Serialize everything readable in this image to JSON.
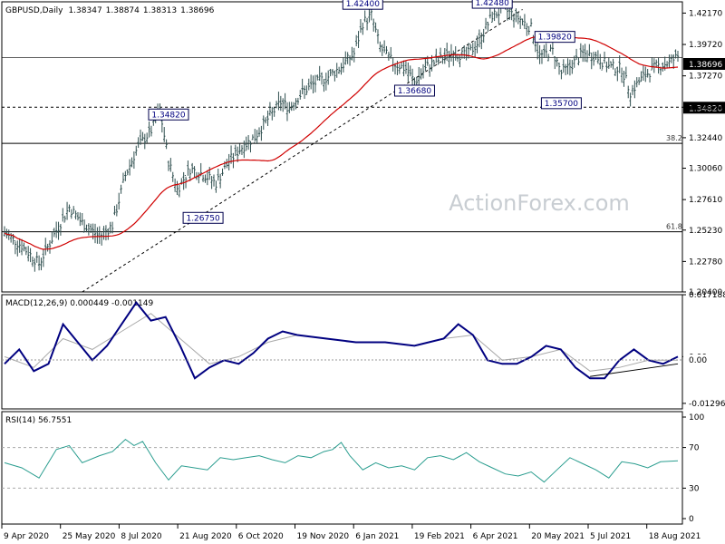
{
  "chart_data": [
    {
      "type": "candlestick",
      "title": "GBPUSD,Daily",
      "ohlc": [
        "1.38347",
        "1.38874",
        "1.38313",
        "1.38696"
      ],
      "ylim": [
        1.204,
        1.4305
      ],
      "y_ticks": [
        "1.42170",
        "1.39720",
        "1.37270",
        "1.34820",
        "1.32440",
        "1.30060",
        "1.27610",
        "1.25230",
        "1.22780",
        "1.20400"
      ],
      "current_price": "1.38696",
      "horizontal_levels": [
        {
          "label": "1.34820",
          "value": 1.3482,
          "style": "dashed"
        },
        {
          "label": "38.2",
          "value": 1.32,
          "style": "solid"
        },
        {
          "label": "61.8",
          "value": 1.251,
          "style": "solid"
        }
      ],
      "annotations": [
        "1.34820",
        "1.26750",
        "1.42400",
        "1.36680",
        "1.42480",
        "1.39820",
        "1.35700"
      ],
      "moving_average": "red",
      "watermark": "ActionForex.com",
      "x_ticks": [
        "9 Apr 2020",
        "25 May 2020",
        "8 Jul 2020",
        "21 Aug 2020",
        "6 Oct 2020",
        "19 Nov 2020",
        "6 Jan 2021",
        "19 Feb 2021",
        "6 Apr 2021",
        "20 May 2021",
        "5 Jul 2021",
        "18 Aug 2021"
      ],
      "close_path": [
        [
          0,
          1.25
        ],
        [
          8,
          1.24
        ],
        [
          16,
          1.226
        ],
        [
          24,
          1.252
        ],
        [
          30,
          1.27
        ],
        [
          36,
          1.258
        ],
        [
          44,
          1.247
        ],
        [
          50,
          1.256
        ],
        [
          56,
          1.295
        ],
        [
          62,
          1.318
        ],
        [
          68,
          1.33
        ],
        [
          72,
          1.346
        ],
        [
          76,
          1.306
        ],
        [
          80,
          1.284
        ],
        [
          86,
          1.3
        ],
        [
          92,
          1.296
        ],
        [
          98,
          1.289
        ],
        [
          104,
          1.306
        ],
        [
          110,
          1.317
        ],
        [
          116,
          1.325
        ],
        [
          122,
          1.339
        ],
        [
          128,
          1.352
        ],
        [
          132,
          1.348
        ],
        [
          138,
          1.36
        ],
        [
          144,
          1.367
        ],
        [
          150,
          1.372
        ],
        [
          156,
          1.38
        ],
        [
          162,
          1.39
        ],
        [
          166,
          1.414
        ],
        [
          170,
          1.42
        ],
        [
          174,
          1.395
        ],
        [
          180,
          1.383
        ],
        [
          186,
          1.378
        ],
        [
          190,
          1.368
        ],
        [
          196,
          1.38
        ],
        [
          202,
          1.386
        ],
        [
          208,
          1.391
        ],
        [
          214,
          1.388
        ],
        [
          220,
          1.4
        ],
        [
          226,
          1.42
        ],
        [
          232,
          1.424
        ],
        [
          238,
          1.418
        ],
        [
          244,
          1.41
        ],
        [
          248,
          1.388
        ],
        [
          254,
          1.392
        ],
        [
          258,
          1.375
        ],
        [
          262,
          1.38
        ],
        [
          268,
          1.39
        ],
        [
          274,
          1.388
        ],
        [
          280,
          1.38
        ],
        [
          286,
          1.378
        ],
        [
          290,
          1.36
        ],
        [
          296,
          1.372
        ],
        [
          302,
          1.38
        ],
        [
          308,
          1.383
        ],
        [
          312,
          1.388
        ]
      ]
    },
    {
      "type": "line",
      "title": "MACD(12,26,9) 0.000449 -0.001149",
      "ylim": [
        -0.0145,
        0.0172
      ],
      "y_ticks": [
        "0.017188",
        "0.00",
        "-0.012962"
      ],
      "current_value": "0.00",
      "series": [
        {
          "values": [
            [
              0,
              -0.002
            ],
            [
              5,
              0.002
            ],
            [
              10,
              -0.004
            ],
            [
              15,
              -0.002
            ],
            [
              20,
              0.009
            ],
            [
              25,
              0.004
            ],
            [
              30,
              -0.001
            ],
            [
              35,
              0.003
            ],
            [
              40,
              0.009
            ],
            [
              45,
              0.015
            ],
            [
              50,
              0.01
            ],
            [
              55,
              0.011
            ],
            [
              60,
              0.003
            ],
            [
              65,
              -0.006
            ],
            [
              70,
              -0.003
            ],
            [
              75,
              -0.001
            ],
            [
              80,
              -0.002
            ],
            [
              85,
              0.001
            ],
            [
              90,
              0.005
            ],
            [
              95,
              0.007
            ],
            [
              100,
              0.006
            ],
            [
              110,
              0.005
            ],
            [
              120,
              0.004
            ],
            [
              130,
              0.004
            ],
            [
              140,
              0.003
            ],
            [
              150,
              0.005
            ],
            [
              155,
              0.009
            ],
            [
              160,
              0.006
            ],
            [
              165,
              -0.001
            ],
            [
              170,
              -0.002
            ],
            [
              175,
              -0.002
            ],
            [
              180,
              0.0
            ],
            [
              185,
              0.003
            ],
            [
              190,
              0.002
            ],
            [
              195,
              -0.003
            ],
            [
              200,
              -0.006
            ],
            [
              205,
              -0.006
            ],
            [
              210,
              -0.001
            ],
            [
              215,
              0.002
            ],
            [
              220,
              -0.001
            ],
            [
              225,
              -0.002
            ],
            [
              230,
              0.0
            ]
          ]
        },
        {
          "values": [
            [
              0,
              0.0
            ],
            [
              10,
              -0.003
            ],
            [
              20,
              0.005
            ],
            [
              30,
              0.002
            ],
            [
              40,
              0.007
            ],
            [
              50,
              0.012
            ],
            [
              60,
              0.005
            ],
            [
              70,
              -0.002
            ],
            [
              80,
              0.0
            ],
            [
              90,
              0.004
            ],
            [
              100,
              0.006
            ],
            [
              110,
              0.005
            ],
            [
              120,
              0.004
            ],
            [
              130,
              0.004
            ],
            [
              140,
              0.003
            ],
            [
              150,
              0.005
            ],
            [
              160,
              0.006
            ],
            [
              170,
              -0.001
            ],
            [
              180,
              0.0
            ],
            [
              190,
              0.002
            ],
            [
              200,
              -0.004
            ],
            [
              210,
              -0.003
            ],
            [
              220,
              -0.001
            ],
            [
              230,
              -0.001
            ]
          ]
        }
      ],
      "trendline": [
        [
          200,
          -0.0055
        ],
        [
          230,
          -0.002
        ]
      ]
    },
    {
      "type": "line",
      "title": "RSI(14) 56.7551",
      "ylim": [
        0,
        100
      ],
      "y_ticks": [
        "100",
        "70",
        "30",
        "0"
      ],
      "levels": [
        70,
        30
      ],
      "series": [
        {
          "values": [
            [
              0,
              55
            ],
            [
              8,
              50
            ],
            [
              16,
              40
            ],
            [
              24,
              68
            ],
            [
              30,
              72
            ],
            [
              36,
              55
            ],
            [
              44,
              62
            ],
            [
              50,
              66
            ],
            [
              56,
              78
            ],
            [
              60,
              72
            ],
            [
              64,
              76
            ],
            [
              70,
              55
            ],
            [
              76,
              38
            ],
            [
              82,
              52
            ],
            [
              88,
              50
            ],
            [
              94,
              48
            ],
            [
              100,
              60
            ],
            [
              106,
              58
            ],
            [
              112,
              60
            ],
            [
              118,
              62
            ],
            [
              124,
              58
            ],
            [
              130,
              55
            ],
            [
              136,
              62
            ],
            [
              142,
              60
            ],
            [
              148,
              66
            ],
            [
              152,
              68
            ],
            [
              156,
              75
            ],
            [
              160,
              62
            ],
            [
              166,
              48
            ],
            [
              172,
              55
            ],
            [
              178,
              50
            ],
            [
              184,
              52
            ],
            [
              190,
              48
            ],
            [
              196,
              60
            ],
            [
              202,
              62
            ],
            [
              208,
              58
            ],
            [
              214,
              65
            ],
            [
              220,
              56
            ],
            [
              226,
              50
            ],
            [
              232,
              44
            ],
            [
              238,
              42
            ],
            [
              244,
              46
            ],
            [
              250,
              36
            ],
            [
              256,
              48
            ],
            [
              262,
              60
            ],
            [
              268,
              54
            ],
            [
              274,
              48
            ],
            [
              280,
              40
            ],
            [
              286,
              56
            ],
            [
              292,
              54
            ],
            [
              298,
              50
            ],
            [
              304,
              56
            ],
            [
              312,
              57
            ]
          ]
        }
      ]
    }
  ]
}
